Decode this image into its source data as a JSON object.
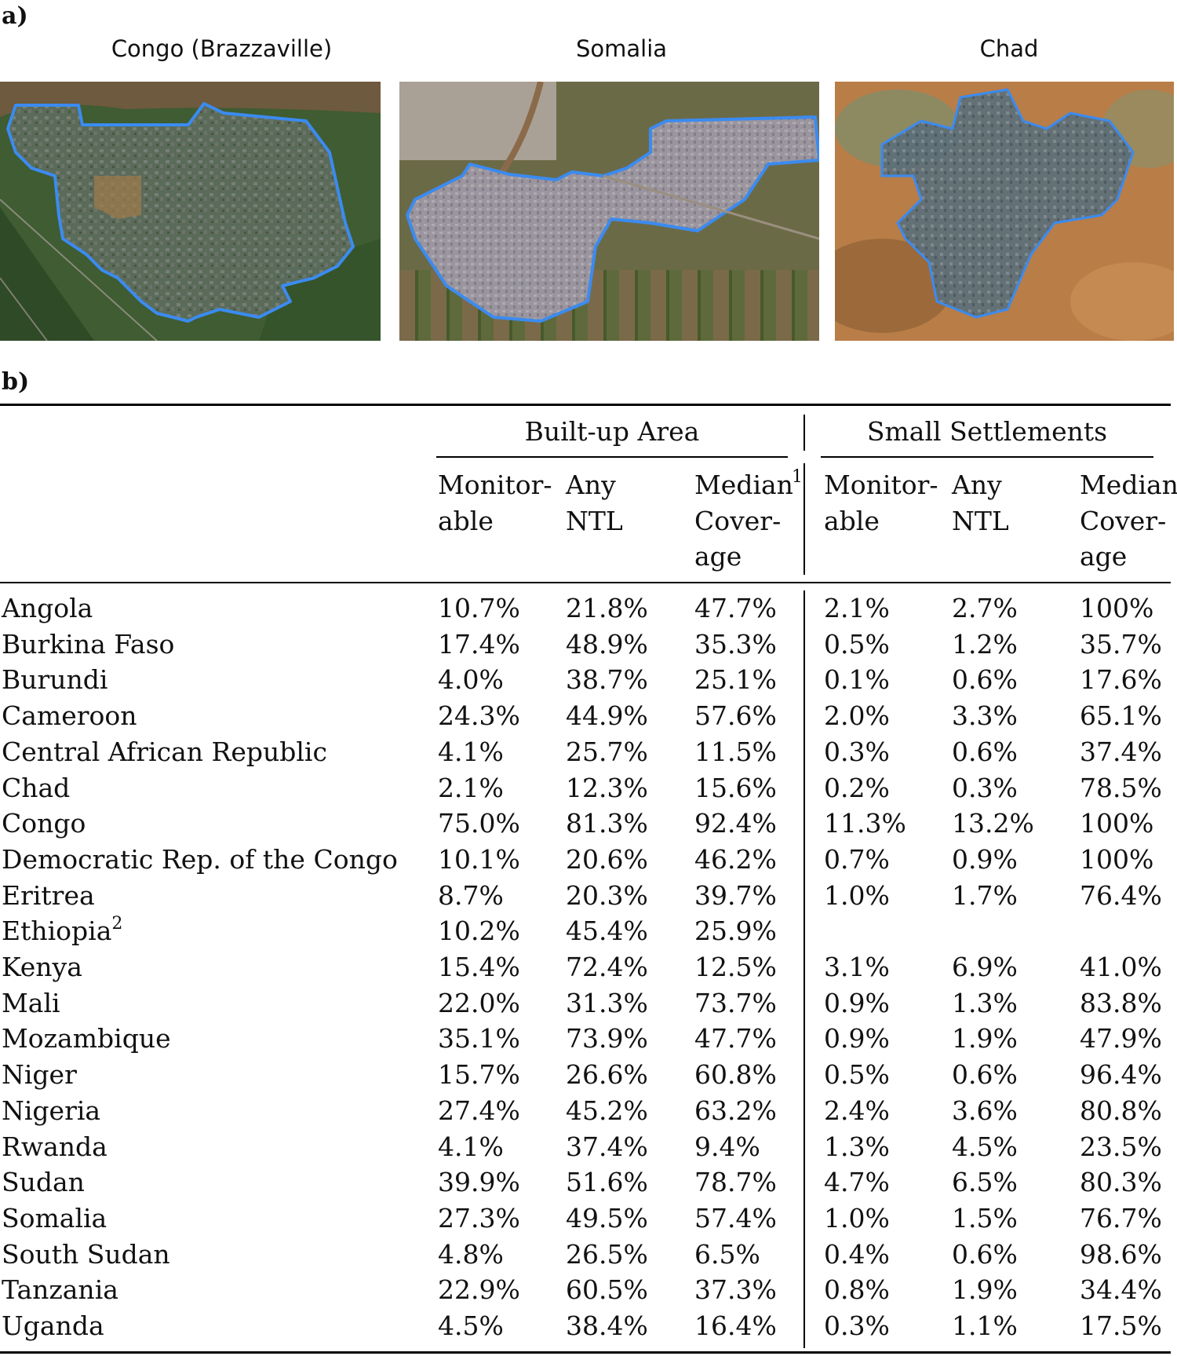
{
  "panel_a_label": "a)",
  "panel_b_label": "b)",
  "images": [
    {
      "title": "Congo (Brazzaville)",
      "palette": [
        "#4a6a3a",
        "#5a6f55",
        "#7b7a70"
      ]
    },
    {
      "title": "Somalia",
      "palette": [
        "#6d6a4c",
        "#8b7b6a",
        "#9f988f"
      ]
    },
    {
      "title": "Chad",
      "palette": [
        "#b67a45",
        "#8b6a48",
        "#7a8080"
      ]
    }
  ],
  "outline_color": "#3b8bf0",
  "table": {
    "group_headers": [
      "Built-up Area",
      "Small Settlements"
    ],
    "col_headers": [
      {
        "lines": [
          "Monitor-",
          "able"
        ],
        "sup": ""
      },
      {
        "lines": [
          "Any",
          "NTL"
        ],
        "sup": ""
      },
      {
        "lines": [
          "Median",
          "Cover-",
          "age"
        ],
        "sup": "1"
      },
      {
        "lines": [
          "Monitor-",
          "able"
        ],
        "sup": ""
      },
      {
        "lines": [
          "Any",
          "NTL"
        ],
        "sup": ""
      },
      {
        "lines": [
          "Median",
          "Cover-",
          "age"
        ],
        "sup": ""
      }
    ],
    "rows": [
      {
        "country": "Angola",
        "sup": "",
        "values": [
          "10.7%",
          "21.8%",
          "47.7%",
          "2.1%",
          "2.7%",
          "100%"
        ]
      },
      {
        "country": "Burkina Faso",
        "sup": "",
        "values": [
          "17.4%",
          "48.9%",
          "35.3%",
          "0.5%",
          "1.2%",
          "35.7%"
        ]
      },
      {
        "country": "Burundi",
        "sup": "",
        "values": [
          "4.0%",
          "38.7%",
          "25.1%",
          "0.1%",
          "0.6%",
          "17.6%"
        ]
      },
      {
        "country": "Cameroon",
        "sup": "",
        "values": [
          "24.3%",
          "44.9%",
          "57.6%",
          "2.0%",
          "3.3%",
          "65.1%"
        ]
      },
      {
        "country": "Central African Republic",
        "sup": "",
        "values": [
          "4.1%",
          "25.7%",
          "11.5%",
          "0.3%",
          "0.6%",
          "37.4%"
        ]
      },
      {
        "country": "Chad",
        "sup": "",
        "values": [
          "2.1%",
          "12.3%",
          "15.6%",
          "0.2%",
          "0.3%",
          "78.5%"
        ]
      },
      {
        "country": "Congo",
        "sup": "",
        "values": [
          "75.0%",
          "81.3%",
          "92.4%",
          "11.3%",
          "13.2%",
          "100%"
        ]
      },
      {
        "country": "Democratic Rep. of the Congo",
        "sup": "",
        "values": [
          "10.1%",
          "20.6%",
          "46.2%",
          "0.7%",
          "0.9%",
          "100%"
        ]
      },
      {
        "country": "Eritrea",
        "sup": "",
        "values": [
          "8.7%",
          "20.3%",
          "39.7%",
          "1.0%",
          "1.7%",
          "76.4%"
        ]
      },
      {
        "country": "Ethiopia",
        "sup": "2",
        "values": [
          "10.2%",
          "45.4%",
          "25.9%",
          "",
          "",
          ""
        ]
      },
      {
        "country": "Kenya",
        "sup": "",
        "values": [
          "15.4%",
          "72.4%",
          "12.5%",
          "3.1%",
          "6.9%",
          "41.0%"
        ]
      },
      {
        "country": "Mali",
        "sup": "",
        "values": [
          "22.0%",
          "31.3%",
          "73.7%",
          "0.9%",
          "1.3%",
          "83.8%"
        ]
      },
      {
        "country": "Mozambique",
        "sup": "",
        "values": [
          "35.1%",
          "73.9%",
          "47.7%",
          "0.9%",
          "1.9%",
          "47.9%"
        ]
      },
      {
        "country": "Niger",
        "sup": "",
        "values": [
          "15.7%",
          "26.6%",
          "60.8%",
          "0.5%",
          "0.6%",
          "96.4%"
        ]
      },
      {
        "country": "Nigeria",
        "sup": "",
        "values": [
          "27.4%",
          "45.2%",
          "63.2%",
          "2.4%",
          "3.6%",
          "80.8%"
        ]
      },
      {
        "country": "Rwanda",
        "sup": "",
        "values": [
          "4.1%",
          "37.4%",
          "9.4%",
          "1.3%",
          "4.5%",
          "23.5%"
        ]
      },
      {
        "country": "Sudan",
        "sup": "",
        "values": [
          "39.9%",
          "51.6%",
          "78.7%",
          "4.7%",
          "6.5%",
          "80.3%"
        ]
      },
      {
        "country": "Somalia",
        "sup": "",
        "values": [
          "27.3%",
          "49.5%",
          "57.4%",
          "1.0%",
          "1.5%",
          "76.7%"
        ]
      },
      {
        "country": "South Sudan",
        "sup": "",
        "values": [
          "4.8%",
          "26.5%",
          "6.5%",
          "0.4%",
          "0.6%",
          "98.6%"
        ]
      },
      {
        "country": "Tanzania",
        "sup": "",
        "values": [
          "22.9%",
          "60.5%",
          "37.3%",
          "0.8%",
          "1.9%",
          "34.4%"
        ]
      },
      {
        "country": "Uganda",
        "sup": "",
        "values": [
          "4.5%",
          "38.4%",
          "16.4%",
          "0.3%",
          "1.1%",
          "17.5%"
        ]
      }
    ]
  }
}
